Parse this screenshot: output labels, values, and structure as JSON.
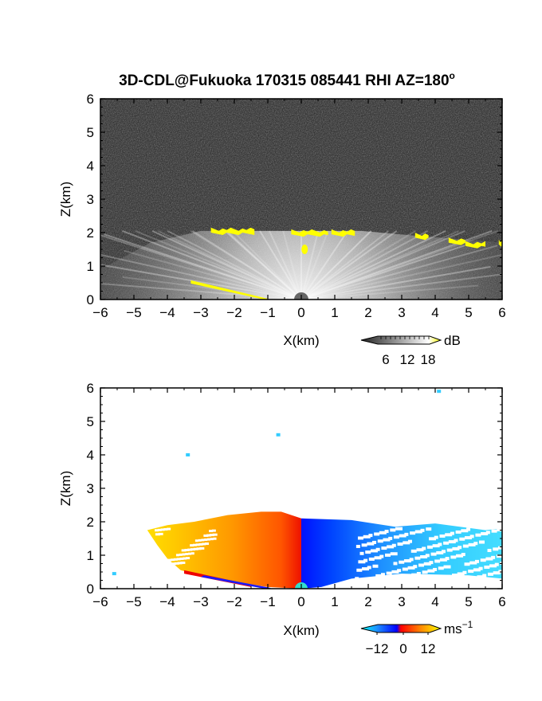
{
  "title": "3D-CDL@Fukuoka 170315 085441 RHI AZ=180",
  "title_degree_mark": "o",
  "chart_data": [
    {
      "type": "heatmap",
      "field": "reflectivity",
      "xlabel": "X(km)",
      "ylabel": "Z(km)",
      "xlim": [
        -6,
        6
      ],
      "ylim": [
        0,
        6
      ],
      "x_ticks": [
        "-6",
        "-5",
        "-4",
        "-3",
        "-2",
        "-1",
        "0",
        "1",
        "2",
        "3",
        "4",
        "5",
        "6"
      ],
      "y_ticks": [
        "0",
        "1",
        "2",
        "3",
        "4",
        "5",
        "6"
      ],
      "colorbar": {
        "unit": "dB",
        "ticks": [
          "6",
          "12",
          "18"
        ],
        "range": [
          0,
          20
        ],
        "colors": [
          "#222222",
          "#ffffff",
          "#ffff00"
        ]
      },
      "cloud_base_segments": [
        {
          "x": [
            -2.7,
            -1.4
          ],
          "z": [
            2.0,
            2.1
          ]
        },
        {
          "x": [
            -0.3,
            0.8
          ],
          "z": [
            1.95,
            2.05
          ]
        },
        {
          "x": [
            0.9,
            1.6
          ],
          "z": [
            1.95,
            2.05
          ]
        },
        {
          "x": [
            3.4,
            3.8
          ],
          "z": [
            1.85,
            1.95
          ]
        },
        {
          "x": [
            4.4,
            4.9
          ],
          "z": [
            1.7,
            1.8
          ]
        },
        {
          "x": [
            4.9,
            5.5
          ],
          "z": [
            1.6,
            1.7
          ]
        },
        {
          "x": [
            5.9,
            6.0
          ],
          "z": [
            1.65,
            1.75
          ]
        }
      ],
      "ground_echo": {
        "x": [
          -3.3,
          -1.0
        ],
        "z": [
          0.55,
          0.0
        ]
      },
      "scan_top_km": 2.05
    },
    {
      "type": "heatmap",
      "field": "doppler_velocity",
      "xlabel": "X(km)",
      "ylabel": "Z(km)",
      "xlim": [
        -6,
        6
      ],
      "ylim": [
        0,
        6
      ],
      "x_ticks": [
        "-6",
        "-5",
        "-4",
        "-3",
        "-2",
        "-1",
        "0",
        "1",
        "2",
        "3",
        "4",
        "5",
        "6"
      ],
      "y_ticks": [
        "0",
        "1",
        "2",
        "3",
        "4",
        "5",
        "6"
      ],
      "colorbar": {
        "unit": "ms",
        "unit_exponent": "−1",
        "ticks": [
          "−12",
          "0",
          "12"
        ],
        "range": [
          -15,
          15
        ]
      },
      "velocity_summary": [
        {
          "region": "x < 0",
          "velocity_ms": [
            2,
            14
          ]
        },
        {
          "region": "x > 0",
          "velocity_ms": [
            -13,
            -2
          ]
        }
      ],
      "echo_extent": {
        "x": [
          -4.6,
          6.0
        ],
        "z_top": [
          2.1,
          2.1
        ]
      },
      "isolated_points": [
        {
          "x": 4.1,
          "z": 5.9
        },
        {
          "x": -0.7,
          "z": 4.6
        },
        {
          "x": -3.4,
          "z": 4.0
        },
        {
          "x": -5.6,
          "z": 0.45
        }
      ]
    }
  ]
}
